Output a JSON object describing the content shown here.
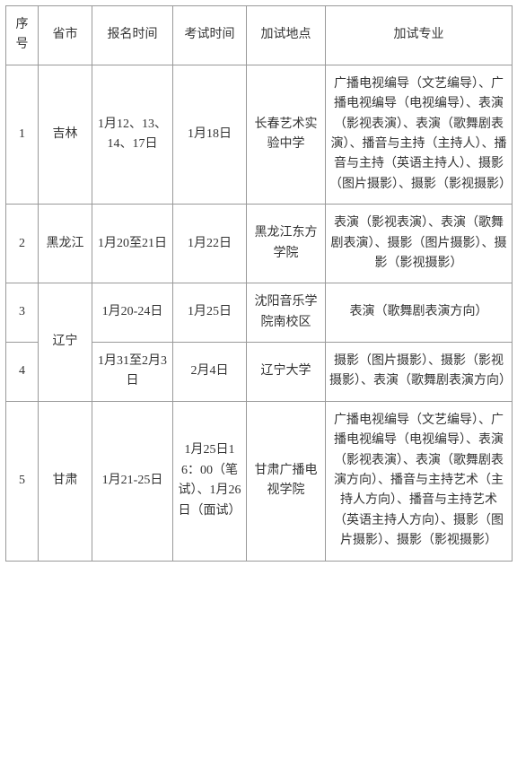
{
  "headers": {
    "seq": "序号",
    "province": "省市",
    "reg_time": "报名时间",
    "exam_time": "考试时间",
    "location": "加试地点",
    "major": "加试专业"
  },
  "rows": [
    {
      "seq": "1",
      "province": "吉林",
      "reg_time": "1月12、13、14、17日",
      "exam_time": "1月18日",
      "location": "长春艺术实验中学",
      "major": "广播电视编导（文艺编导）、广播电视编导（电视编导）、表演（影视表演）、表演（歌舞剧表演）、播音与主持（主持人）、播音与主持（英语主持人）、摄影（图片摄影）、摄影（影视摄影）"
    },
    {
      "seq": "2",
      "province": "黑龙江",
      "reg_time": "1月20至21日",
      "exam_time": "1月22日",
      "location": "黑龙江东方学院",
      "major": "表演（影视表演）、表演（歌舞剧表演）、摄影（图片摄影）、摄影（影视摄影）"
    },
    {
      "seq": "3",
      "province": "辽宁",
      "reg_time": "1月20-24日",
      "exam_time": "1月25日",
      "location": "沈阳音乐学院南校区",
      "major": "表演（歌舞剧表演方向）"
    },
    {
      "seq": "4",
      "reg_time": "1月31至2月3日",
      "exam_time": "2月4日",
      "location": "辽宁大学",
      "major": "摄影（图片摄影）、摄影（影视摄影）、表演（歌舞剧表演方向）"
    },
    {
      "seq": "5",
      "province": "甘肃",
      "reg_time": "1月21-25日",
      "exam_time": "1月25日16：00（笔试）、1月26日（面试）",
      "location": "甘肃广播电视学院",
      "major": "广播电视编导（文艺编导）、广播电视编导（电视编导）、表演（影视表演）、表演（歌舞剧表演方向）、播音与主持艺术（主持人方向）、播音与主持艺术（英语主持人方向）、摄影（图片摄影）、摄影（影视摄影）"
    }
  ]
}
